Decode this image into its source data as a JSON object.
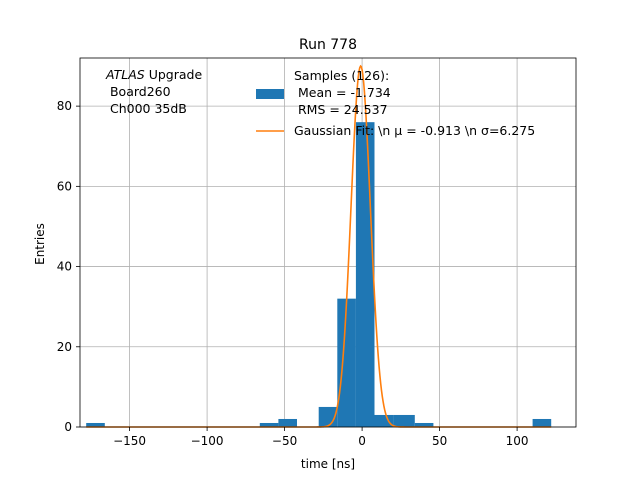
{
  "chart_data": {
    "type": "bar",
    "title": "Run 778",
    "xlabel": "time [ns]",
    "ylabel": "Entries",
    "xlim": [
      -182,
      138
    ],
    "ylim": [
      0,
      92
    ],
    "grid": true,
    "x_ticks": [
      -150,
      -100,
      -50,
      0,
      50,
      100
    ],
    "x_tick_labels": [
      "−150",
      "−100",
      "−50",
      "0",
      "50",
      "100"
    ],
    "y_ticks": [
      0,
      20,
      40,
      60,
      80
    ],
    "y_tick_labels": [
      "0",
      "20",
      "40",
      "60",
      "80"
    ],
    "annotation": {
      "italic": "ATLAS",
      "rest": " Upgrade",
      "line2": " Board260",
      "line3": " Ch000 35dB"
    },
    "legend": {
      "placement": "top-right",
      "histogram_line1": "Samples (126):",
      "histogram_line2": " Mean = -1.734",
      "histogram_line3": " RMS = 24.537",
      "fit_label": "Gaussian Fit: \\n μ = -0.913 \\n σ=6.275"
    },
    "series": [
      {
        "name": "Samples (126):",
        "kind": "histogram",
        "color": "#1f77b4",
        "bins": [
          {
            "x0": -178,
            "x1": -166,
            "count": 1
          },
          {
            "x0": -66,
            "x1": -54,
            "count": 1
          },
          {
            "x0": -54,
            "x1": -42,
            "count": 2
          },
          {
            "x0": -28,
            "x1": -16,
            "count": 5
          },
          {
            "x0": -16,
            "x1": -4,
            "count": 32
          },
          {
            "x0": -4,
            "x1": 8,
            "count": 76
          },
          {
            "x0": 8,
            "x1": 20,
            "count": 3
          },
          {
            "x0": 20,
            "x1": 34,
            "count": 3
          },
          {
            "x0": 34,
            "x1": 46,
            "count": 1
          },
          {
            "x0": 110,
            "x1": 122,
            "count": 2
          }
        ]
      },
      {
        "name": "Gaussian Fit",
        "kind": "gaussian",
        "color": "#ff7f0e",
        "amplitude": 90,
        "mu": -0.913,
        "sigma": 6.275,
        "x_range": [
          -178,
          122
        ]
      }
    ]
  }
}
